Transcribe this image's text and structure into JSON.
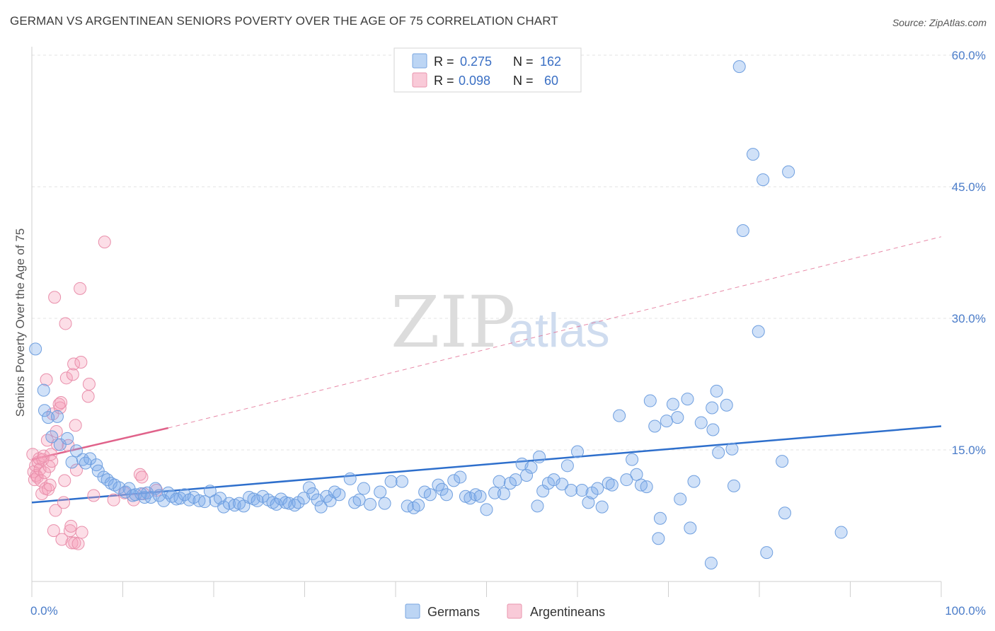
{
  "header": {
    "title": "GERMAN VS ARGENTINEAN SENIORS POVERTY OVER THE AGE OF 75 CORRELATION CHART",
    "source": "Source: ZipAtlas.com"
  },
  "watermark": {
    "zip": "ZIP",
    "atlas": "atlas"
  },
  "legend_top": [
    {
      "r_label": "R =",
      "r_value": "0.275",
      "n_label": "N =",
      "n_value": "162",
      "color": "#a8c8f0"
    },
    {
      "r_label": "R =",
      "r_value": "0.098",
      "n_label": "N =",
      "n_value": "60",
      "color": "#f5b8cb"
    }
  ],
  "legend_bottom": [
    {
      "label": "Germans",
      "color": "#a8c8f0"
    },
    {
      "label": "Argentineans",
      "color": "#f5b8cb"
    }
  ],
  "colors": {
    "german_fill": "rgba(120,170,235,0.35)",
    "german_stroke": "#6f9fdf",
    "german_line": "#2e6fcc",
    "arg_fill": "rgba(245,160,185,0.35)",
    "arg_stroke": "#e98fab",
    "arg_line": "#e0628a",
    "grid": "#e3e3e3",
    "axis_label": "#4a7cc9"
  },
  "chart_data": {
    "type": "scatter",
    "title": "GERMAN VS ARGENTINEAN SENIORS POVERTY OVER THE AGE OF 75 CORRELATION CHART",
    "xlabel": "",
    "ylabel": "Seniors Poverty Over the Age of 75",
    "xlim": [
      0,
      100
    ],
    "ylim": [
      0,
      60
    ],
    "x_tick_labels": [
      "0.0%",
      "100.0%"
    ],
    "y_ticks": [
      15,
      30,
      45,
      60
    ],
    "y_tick_labels": [
      "15.0%",
      "30.0%",
      "45.0%",
      "60.0%"
    ],
    "grid": true,
    "legend": "top-center",
    "series": [
      {
        "name": "Germans",
        "trend": {
          "x": [
            0,
            100
          ],
          "y": [
            9.0,
            17.7
          ],
          "style": "solid"
        },
        "points": [
          [
            0.4,
            26.5
          ],
          [
            1.3,
            21.8
          ],
          [
            1.4,
            19.5
          ],
          [
            1.8,
            18.7
          ],
          [
            2.2,
            16.5
          ],
          [
            2.8,
            18.8
          ],
          [
            3.1,
            15.6
          ],
          [
            3.9,
            16.3
          ],
          [
            4.4,
            13.6
          ],
          [
            4.9,
            14.9
          ],
          [
            5.6,
            13.9
          ],
          [
            5.9,
            13.5
          ],
          [
            6.4,
            14.0
          ],
          [
            7.1,
            13.3
          ],
          [
            7.3,
            12.6
          ],
          [
            7.9,
            11.9
          ],
          [
            8.3,
            11.6
          ],
          [
            8.7,
            11.2
          ],
          [
            9.1,
            11.0
          ],
          [
            9.6,
            10.7
          ],
          [
            10.3,
            10.2
          ],
          [
            10.7,
            10.6
          ],
          [
            11.1,
            9.8
          ],
          [
            11.4,
            9.9
          ],
          [
            12.0,
            10.0
          ],
          [
            12.4,
            9.6
          ],
          [
            12.7,
            10.1
          ],
          [
            13.1,
            9.6
          ],
          [
            13.6,
            10.6
          ],
          [
            14.0,
            9.8
          ],
          [
            14.5,
            9.2
          ],
          [
            15.0,
            10.1
          ],
          [
            15.4,
            9.7
          ],
          [
            15.9,
            9.4
          ],
          [
            16.3,
            9.5
          ],
          [
            16.8,
            9.9
          ],
          [
            17.3,
            9.3
          ],
          [
            17.8,
            9.6
          ],
          [
            18.4,
            9.2
          ],
          [
            19.0,
            9.1
          ],
          [
            19.6,
            10.3
          ],
          [
            20.2,
            9.2
          ],
          [
            20.7,
            9.5
          ],
          [
            21.1,
            8.5
          ],
          [
            21.7,
            8.9
          ],
          [
            22.3,
            8.7
          ],
          [
            22.8,
            8.9
          ],
          [
            23.3,
            8.6
          ],
          [
            23.9,
            9.6
          ],
          [
            24.4,
            9.4
          ],
          [
            24.8,
            9.2
          ],
          [
            25.4,
            9.7
          ],
          [
            26.0,
            9.3
          ],
          [
            26.5,
            9.0
          ],
          [
            26.9,
            8.8
          ],
          [
            27.4,
            9.4
          ],
          [
            27.9,
            9.0
          ],
          [
            28.3,
            8.9
          ],
          [
            28.9,
            8.7
          ],
          [
            29.3,
            9.0
          ],
          [
            29.9,
            9.5
          ],
          [
            30.5,
            10.7
          ],
          [
            30.9,
            10.0
          ],
          [
            31.4,
            9.3
          ],
          [
            31.8,
            8.5
          ],
          [
            32.4,
            9.7
          ],
          [
            32.8,
            9.2
          ],
          [
            33.3,
            10.2
          ],
          [
            33.8,
            9.9
          ],
          [
            35.0,
            11.7
          ],
          [
            35.5,
            9.0
          ],
          [
            36.0,
            9.3
          ],
          [
            36.5,
            10.6
          ],
          [
            37.2,
            8.8
          ],
          [
            38.3,
            10.2
          ],
          [
            38.8,
            8.9
          ],
          [
            39.5,
            11.4
          ],
          [
            40.7,
            11.4
          ],
          [
            41.3,
            8.6
          ],
          [
            42.0,
            8.4
          ],
          [
            42.5,
            8.7
          ],
          [
            43.2,
            10.2
          ],
          [
            43.8,
            9.9
          ],
          [
            44.7,
            11.0
          ],
          [
            45.1,
            10.5
          ],
          [
            45.6,
            9.9
          ],
          [
            46.4,
            11.5
          ],
          [
            47.1,
            11.9
          ],
          [
            47.7,
            9.7
          ],
          [
            48.2,
            9.5
          ],
          [
            48.8,
            9.9
          ],
          [
            49.3,
            9.7
          ],
          [
            50.0,
            8.2
          ],
          [
            50.9,
            10.1
          ],
          [
            51.4,
            11.4
          ],
          [
            51.9,
            10.0
          ],
          [
            52.6,
            11.2
          ],
          [
            53.2,
            11.6
          ],
          [
            53.9,
            13.4
          ],
          [
            54.4,
            12.1
          ],
          [
            54.9,
            13.0
          ],
          [
            55.6,
            8.6
          ],
          [
            55.8,
            14.2
          ],
          [
            56.2,
            10.3
          ],
          [
            56.8,
            11.2
          ],
          [
            57.4,
            11.6
          ],
          [
            58.3,
            11.1
          ],
          [
            58.9,
            13.2
          ],
          [
            59.3,
            10.4
          ],
          [
            60.0,
            14.8
          ],
          [
            60.5,
            10.4
          ],
          [
            61.2,
            9.0
          ],
          [
            61.6,
            10.1
          ],
          [
            62.2,
            10.6
          ],
          [
            62.7,
            8.5
          ],
          [
            63.4,
            11.2
          ],
          [
            63.8,
            11.0
          ],
          [
            64.6,
            18.9
          ],
          [
            65.4,
            11.6
          ],
          [
            66.0,
            13.9
          ],
          [
            66.5,
            12.2
          ],
          [
            67.0,
            11.0
          ],
          [
            67.6,
            10.8
          ],
          [
            68.0,
            20.6
          ],
          [
            68.5,
            17.7
          ],
          [
            69.1,
            7.2
          ],
          [
            68.9,
            4.9
          ],
          [
            69.8,
            18.3
          ],
          [
            70.5,
            20.2
          ],
          [
            71.0,
            18.7
          ],
          [
            71.3,
            9.4
          ],
          [
            72.1,
            20.8
          ],
          [
            72.4,
            6.1
          ],
          [
            72.8,
            11.4
          ],
          [
            73.6,
            18.1
          ],
          [
            74.8,
            19.8
          ],
          [
            74.7,
            2.1
          ],
          [
            75.3,
            21.7
          ],
          [
            74.9,
            17.3
          ],
          [
            75.5,
            14.7
          ],
          [
            76.4,
            20.1
          ],
          [
            77.2,
            10.9
          ],
          [
            77.8,
            58.7
          ],
          [
            77.0,
            15.1
          ],
          [
            78.2,
            40.0
          ],
          [
            79.3,
            48.7
          ],
          [
            79.9,
            28.5
          ],
          [
            80.4,
            45.8
          ],
          [
            80.8,
            3.3
          ],
          [
            82.5,
            13.7
          ],
          [
            82.8,
            7.8
          ],
          [
            83.2,
            46.7
          ],
          [
            89.0,
            5.6
          ]
        ]
      },
      {
        "name": "Argentineans",
        "trend": {
          "x": [
            0,
            15
          ],
          "y": [
            13.9,
            17.5
          ],
          "dashed_extension": {
            "x": [
              15,
              100
            ],
            "y": [
              17.5,
              39.3
            ]
          },
          "style": "solid"
        },
        "points": [
          [
            0.1,
            14.5
          ],
          [
            0.2,
            12.5
          ],
          [
            0.3,
            11.6
          ],
          [
            0.4,
            13.2
          ],
          [
            0.5,
            12.1
          ],
          [
            0.6,
            11.9
          ],
          [
            0.7,
            13.6
          ],
          [
            0.8,
            14.0
          ],
          [
            0.9,
            12.8
          ],
          [
            1.0,
            11.5
          ],
          [
            1.1,
            10.0
          ],
          [
            1.2,
            13.9
          ],
          [
            1.3,
            14.3
          ],
          [
            1.4,
            12.4
          ],
          [
            1.5,
            10.6
          ],
          [
            1.6,
            23.0
          ],
          [
            1.7,
            16.1
          ],
          [
            1.8,
            10.5
          ],
          [
            1.9,
            13.1
          ],
          [
            2.0,
            11.0
          ],
          [
            2.1,
            14.5
          ],
          [
            2.2,
            13.7
          ],
          [
            2.3,
            19.1
          ],
          [
            2.4,
            5.8
          ],
          [
            2.5,
            32.4
          ],
          [
            2.6,
            8.1
          ],
          [
            2.7,
            17.1
          ],
          [
            2.8,
            15.6
          ],
          [
            3.0,
            20.2
          ],
          [
            3.1,
            19.8
          ],
          [
            3.2,
            20.4
          ],
          [
            3.3,
            4.8
          ],
          [
            3.5,
            9.0
          ],
          [
            3.6,
            11.5
          ],
          [
            3.7,
            29.4
          ],
          [
            3.8,
            23.2
          ],
          [
            4.0,
            15.5
          ],
          [
            4.2,
            5.8
          ],
          [
            4.3,
            6.3
          ],
          [
            4.4,
            4.4
          ],
          [
            4.5,
            23.6
          ],
          [
            4.6,
            24.8
          ],
          [
            4.7,
            4.4
          ],
          [
            4.8,
            17.8
          ],
          [
            4.9,
            12.7
          ],
          [
            5.1,
            4.3
          ],
          [
            5.3,
            33.4
          ],
          [
            5.4,
            25.0
          ],
          [
            5.5,
            5.6
          ],
          [
            6.2,
            21.1
          ],
          [
            6.3,
            22.5
          ],
          [
            6.8,
            9.8
          ],
          [
            8.0,
            38.7
          ],
          [
            9.0,
            9.3
          ],
          [
            10.2,
            10.1
          ],
          [
            11.2,
            9.3
          ],
          [
            11.9,
            12.2
          ],
          [
            12.1,
            11.9
          ],
          [
            12.3,
            10.0
          ],
          [
            13.7,
            10.4
          ]
        ]
      }
    ]
  }
}
